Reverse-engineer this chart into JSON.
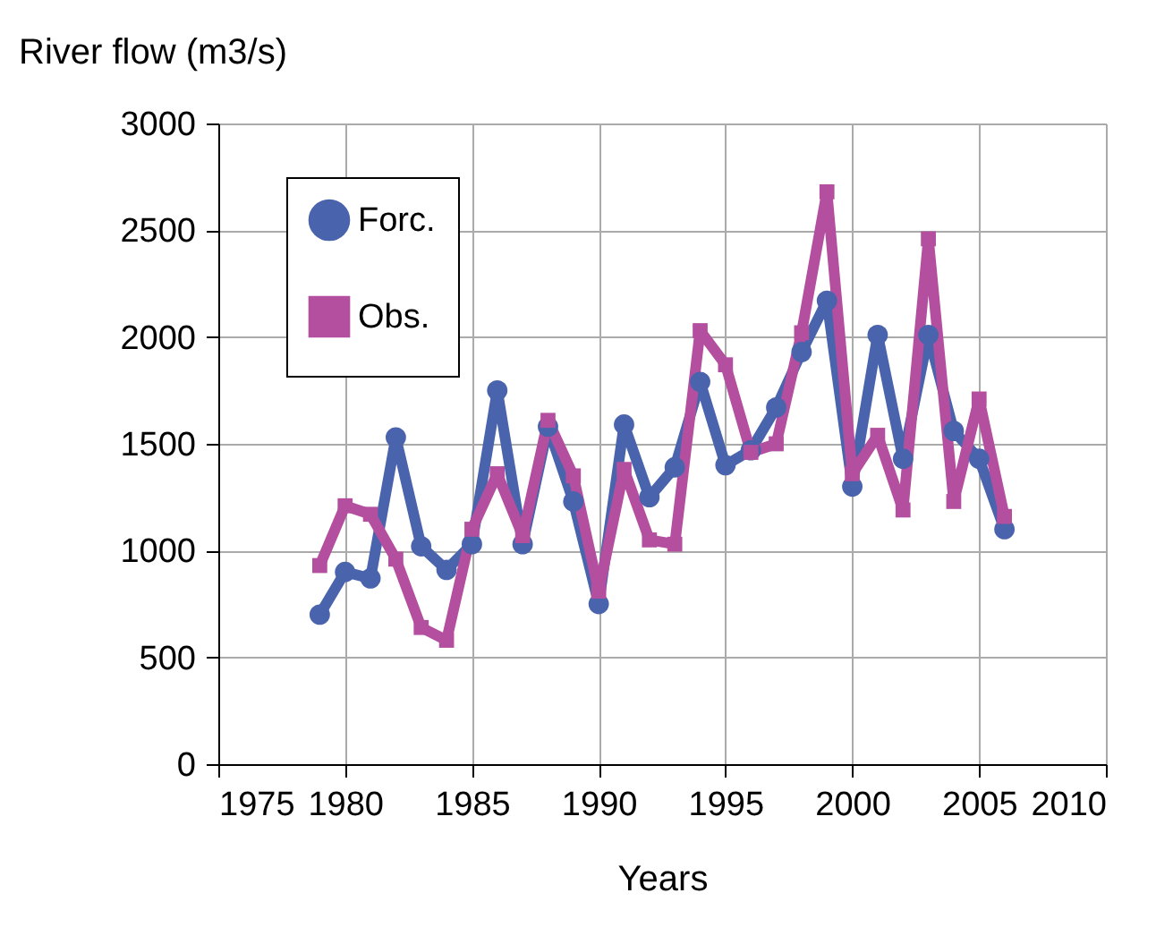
{
  "chart_data": {
    "type": "line",
    "ylabel": "River flow (m3/s)",
    "xlabel": "Years",
    "x": [
      1979,
      1980,
      1981,
      1982,
      1983,
      1984,
      1985,
      1986,
      1987,
      1988,
      1989,
      1990,
      1991,
      1992,
      1993,
      1994,
      1995,
      1996,
      1997,
      1998,
      1999,
      2000,
      2001,
      2002,
      2003,
      2004,
      2005,
      2006
    ],
    "series": [
      {
        "name": "Forc.",
        "color": "#4a63ad",
        "marker": "circle",
        "values": [
          700,
          900,
          870,
          1530,
          1020,
          910,
          1030,
          1750,
          1030,
          1580,
          1230,
          750,
          1590,
          1250,
          1390,
          1790,
          1400,
          1470,
          1670,
          1930,
          2170,
          1300,
          2010,
          1430,
          2010,
          1560,
          1430,
          1100
        ]
      },
      {
        "name": "Obs.",
        "color": "#b44fa0",
        "marker": "square",
        "values": [
          930,
          1210,
          1170,
          960,
          640,
          580,
          1100,
          1360,
          1070,
          1610,
          1350,
          810,
          1380,
          1050,
          1030,
          2030,
          1870,
          1460,
          1500,
          2020,
          2680,
          1360,
          1540,
          1190,
          2460,
          1230,
          1710,
          1160
        ]
      }
    ],
    "xlim": [
      1975,
      2010
    ],
    "xticks": [
      1975,
      1980,
      1985,
      1990,
      1995,
      2000,
      2005,
      2010
    ],
    "ylim": [
      0,
      3000
    ],
    "yticks": [
      0,
      500,
      1000,
      1500,
      2000,
      2500,
      3000
    ],
    "grid": true,
    "legend": "top left",
    "line_style": "solid"
  }
}
